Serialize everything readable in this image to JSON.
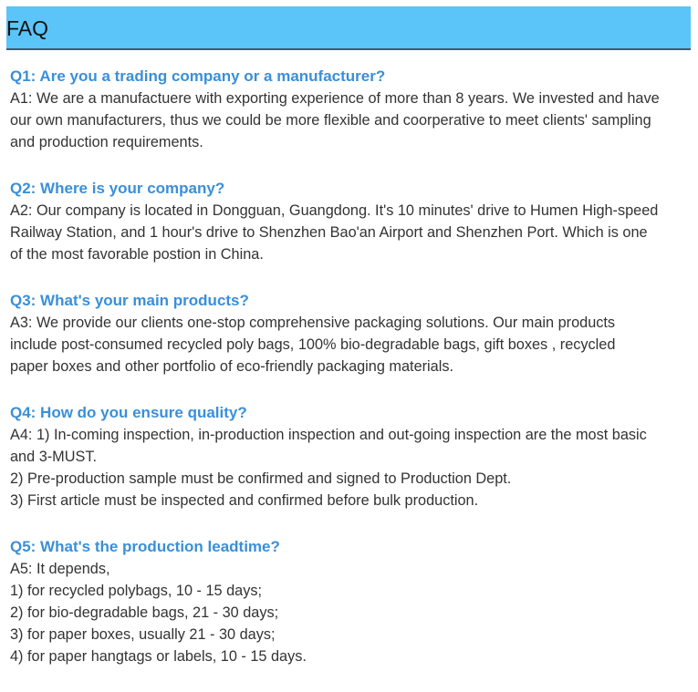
{
  "header": {
    "title": "FAQ",
    "background": "#5bc4f8"
  },
  "colors": {
    "question": "#3a8fd8",
    "answer": "#333333"
  },
  "faq": [
    {
      "question": "Q1: Are you a trading company or a manufacturer?",
      "answer_lines": [
        "A1: We are a manufactuere with exporting experience of more than 8 years. We invested and have",
        "our own manufacturers, thus we could be more flexible and coorperative to meet clients' sampling",
        "and production requirements."
      ]
    },
    {
      "question": "Q2: Where is your company?",
      "answer_lines": [
        "A2: Our company is located in Dongguan, Guangdong. It's 10 minutes' drive to Humen High-speed",
        "Railway Station, and 1 hour's drive to Shenzhen Bao'an Airport and Shenzhen Port. Which is one",
        "of the most favorable postion in China."
      ]
    },
    {
      "question": "Q3: What's your main products?",
      "answer_lines": [
        "A3: We provide our clients one-stop comprehensive packaging solutions. Our main products",
        "include post-consumed recycled poly bags, 100% bio-degradable bags, gift boxes , recycled",
        "paper boxes and other portfolio of eco-friendly packaging materials."
      ]
    },
    {
      "question": "Q4: How do you ensure quality?",
      "answer_lines": [
        "A4: 1) In-coming inspection, in-production inspection and out-going inspection are the most basic",
        "and 3-MUST.",
        "2) Pre-production sample must be confirmed and signed to Production Dept.",
        "3) First article must be inspected and confirmed before bulk production."
      ]
    },
    {
      "question": "Q5: What's the production leadtime?",
      "answer_lines": [
        "A5: It depends,",
        "1) for recycled polybags, 10 - 15 days;",
        "2) for bio-degradable bags, 21 - 30 days;",
        "3) for paper boxes, usually 21 - 30 days;",
        "4) for paper hangtags or labels, 10 - 15 days."
      ]
    }
  ]
}
